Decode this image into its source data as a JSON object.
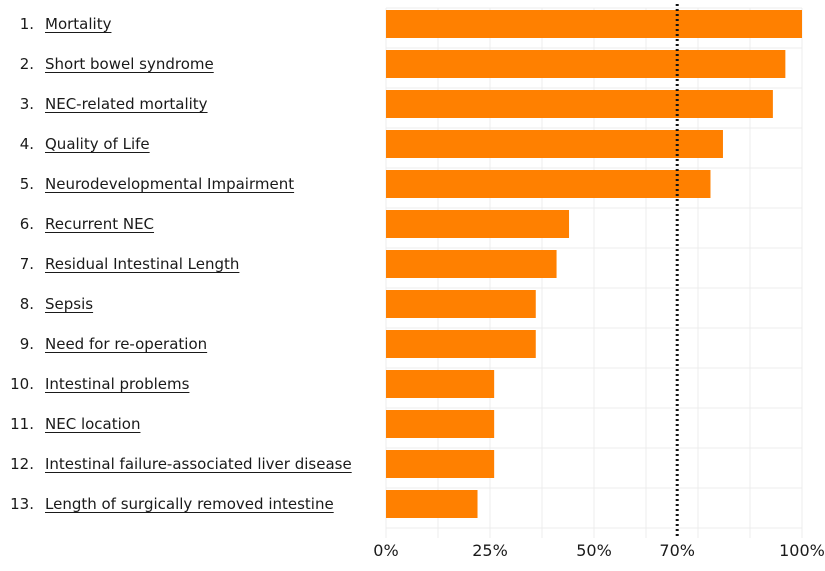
{
  "chart_data": {
    "type": "bar",
    "orientation": "horizontal",
    "categories": [
      {
        "rank": "1.",
        "label": "Mortality"
      },
      {
        "rank": "2.",
        "label": "Short bowel syndrome"
      },
      {
        "rank": "3.",
        "label": "NEC-related mortality"
      },
      {
        "rank": "4.",
        "label": "Quality of Life"
      },
      {
        "rank": "5.",
        "label": "Neurodevelopmental Impairment"
      },
      {
        "rank": "6.",
        "label": "Recurrent NEC"
      },
      {
        "rank": "7.",
        "label": "Residual Intestinal Length"
      },
      {
        "rank": "8.",
        "label": "Sepsis"
      },
      {
        "rank": "9.",
        "label": "Need for re-operation"
      },
      {
        "rank": "10.",
        "label": "Intestinal problems"
      },
      {
        "rank": "11.",
        "label": "NEC location"
      },
      {
        "rank": "12.",
        "label": "Intestinal failure-associated liver disease"
      },
      {
        "rank": "13.",
        "label": "Length of surgically removed intestine"
      }
    ],
    "values": [
      100,
      96,
      93,
      81,
      78,
      44,
      41,
      36,
      36,
      26,
      26,
      26,
      22
    ],
    "xlim": [
      0,
      100
    ],
    "x_ticks": [
      "0%",
      "25%",
      "50%",
      "70%",
      "100%"
    ],
    "x_tick_values": [
      0,
      25,
      50,
      70,
      100
    ],
    "threshold": 70,
    "threshold_style": "dotted",
    "grid": true,
    "bar_color": "#ff8000",
    "grid_color": "#ececec",
    "threshold_color": "#111111"
  }
}
